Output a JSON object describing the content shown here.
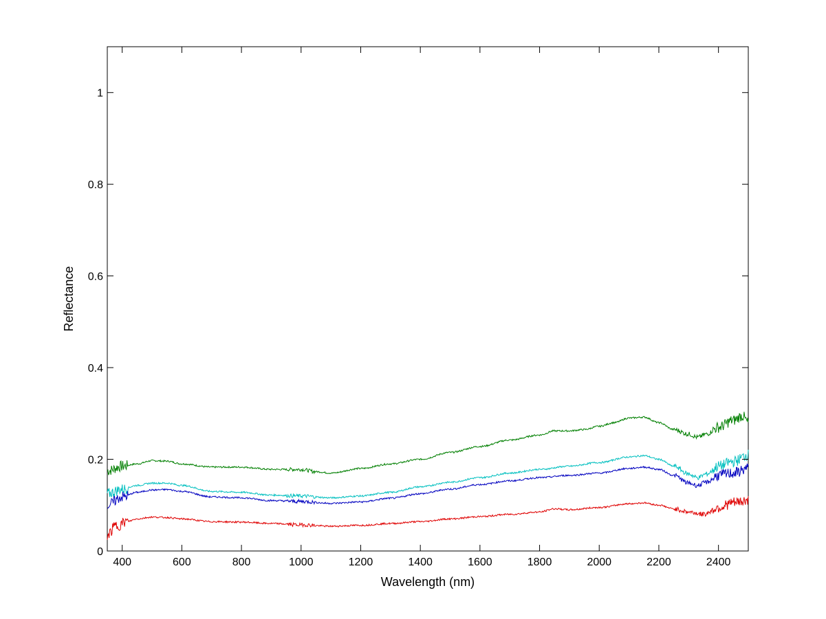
{
  "chart_data": {
    "type": "line",
    "title": "",
    "xlabel": "Wavelength (nm)",
    "ylabel": "Reflectance",
    "xlim": [
      350,
      2500
    ],
    "ylim": [
      0,
      1.1
    ],
    "xticks": [
      400,
      600,
      800,
      1000,
      1200,
      1400,
      1600,
      1800,
      2000,
      2200,
      2400
    ],
    "yticks": [
      0,
      0.2,
      0.4,
      0.6,
      0.8,
      1
    ],
    "ytick_labels": [
      "0",
      "0.2",
      "0.4",
      "0.6",
      "0.8",
      "1"
    ],
    "grid": false,
    "legend": "none",
    "series": [
      {
        "color": "#007f00",
        "points": [
          [
            350,
            0.175
          ],
          [
            400,
            0.185
          ],
          [
            450,
            0.19
          ],
          [
            500,
            0.197
          ],
          [
            550,
            0.196
          ],
          [
            600,
            0.19
          ],
          [
            700,
            0.183
          ],
          [
            800,
            0.183
          ],
          [
            900,
            0.178
          ],
          [
            1000,
            0.178
          ],
          [
            1050,
            0.173
          ],
          [
            1100,
            0.17
          ],
          [
            1200,
            0.18
          ],
          [
            1300,
            0.19
          ],
          [
            1400,
            0.2
          ],
          [
            1500,
            0.215
          ],
          [
            1600,
            0.228
          ],
          [
            1700,
            0.242
          ],
          [
            1800,
            0.253
          ],
          [
            1850,
            0.262
          ],
          [
            1900,
            0.262
          ],
          [
            1950,
            0.265
          ],
          [
            2000,
            0.272
          ],
          [
            2050,
            0.28
          ],
          [
            2100,
            0.29
          ],
          [
            2150,
            0.292
          ],
          [
            2200,
            0.28
          ],
          [
            2250,
            0.265
          ],
          [
            2300,
            0.255
          ],
          [
            2330,
            0.248
          ],
          [
            2360,
            0.255
          ],
          [
            2400,
            0.27
          ],
          [
            2450,
            0.285
          ],
          [
            2480,
            0.295
          ],
          [
            2500,
            0.28
          ]
        ]
      },
      {
        "color": "#00bfbf",
        "points": [
          [
            350,
            0.125
          ],
          [
            400,
            0.135
          ],
          [
            450,
            0.143
          ],
          [
            500,
            0.148
          ],
          [
            550,
            0.148
          ],
          [
            600,
            0.143
          ],
          [
            700,
            0.13
          ],
          [
            800,
            0.128
          ],
          [
            900,
            0.122
          ],
          [
            1000,
            0.12
          ],
          [
            1100,
            0.116
          ],
          [
            1200,
            0.12
          ],
          [
            1300,
            0.128
          ],
          [
            1400,
            0.14
          ],
          [
            1500,
            0.15
          ],
          [
            1600,
            0.16
          ],
          [
            1700,
            0.17
          ],
          [
            1800,
            0.178
          ],
          [
            1900,
            0.185
          ],
          [
            2000,
            0.193
          ],
          [
            2100,
            0.205
          ],
          [
            2150,
            0.208
          ],
          [
            2200,
            0.2
          ],
          [
            2250,
            0.185
          ],
          [
            2300,
            0.168
          ],
          [
            2330,
            0.16
          ],
          [
            2360,
            0.168
          ],
          [
            2400,
            0.185
          ],
          [
            2450,
            0.195
          ],
          [
            2500,
            0.21
          ]
        ]
      },
      {
        "color": "#0000bf",
        "points": [
          [
            350,
            0.1
          ],
          [
            400,
            0.118
          ],
          [
            450,
            0.128
          ],
          [
            500,
            0.133
          ],
          [
            550,
            0.134
          ],
          [
            600,
            0.13
          ],
          [
            700,
            0.118
          ],
          [
            800,
            0.116
          ],
          [
            900,
            0.11
          ],
          [
            1000,
            0.108
          ],
          [
            1100,
            0.104
          ],
          [
            1200,
            0.107
          ],
          [
            1300,
            0.115
          ],
          [
            1400,
            0.125
          ],
          [
            1500,
            0.135
          ],
          [
            1600,
            0.145
          ],
          [
            1700,
            0.153
          ],
          [
            1800,
            0.16
          ],
          [
            1900,
            0.165
          ],
          [
            2000,
            0.17
          ],
          [
            2100,
            0.18
          ],
          [
            2150,
            0.183
          ],
          [
            2200,
            0.178
          ],
          [
            2250,
            0.165
          ],
          [
            2300,
            0.148
          ],
          [
            2330,
            0.143
          ],
          [
            2360,
            0.15
          ],
          [
            2400,
            0.165
          ],
          [
            2450,
            0.17
          ],
          [
            2500,
            0.18
          ]
        ]
      },
      {
        "color": "#df0000",
        "points": [
          [
            350,
            0.035
          ],
          [
            380,
            0.055
          ],
          [
            420,
            0.065
          ],
          [
            450,
            0.07
          ],
          [
            500,
            0.074
          ],
          [
            550,
            0.073
          ],
          [
            600,
            0.07
          ],
          [
            700,
            0.064
          ],
          [
            800,
            0.063
          ],
          [
            900,
            0.06
          ],
          [
            1000,
            0.057
          ],
          [
            1100,
            0.054
          ],
          [
            1200,
            0.056
          ],
          [
            1300,
            0.06
          ],
          [
            1400,
            0.064
          ],
          [
            1500,
            0.07
          ],
          [
            1600,
            0.075
          ],
          [
            1700,
            0.08
          ],
          [
            1800,
            0.085
          ],
          [
            1850,
            0.092
          ],
          [
            1900,
            0.09
          ],
          [
            2000,
            0.095
          ],
          [
            2100,
            0.103
          ],
          [
            2150,
            0.105
          ],
          [
            2200,
            0.1
          ],
          [
            2250,
            0.092
          ],
          [
            2300,
            0.085
          ],
          [
            2350,
            0.08
          ],
          [
            2400,
            0.095
          ],
          [
            2450,
            0.105
          ],
          [
            2500,
            0.11
          ]
        ]
      }
    ]
  }
}
